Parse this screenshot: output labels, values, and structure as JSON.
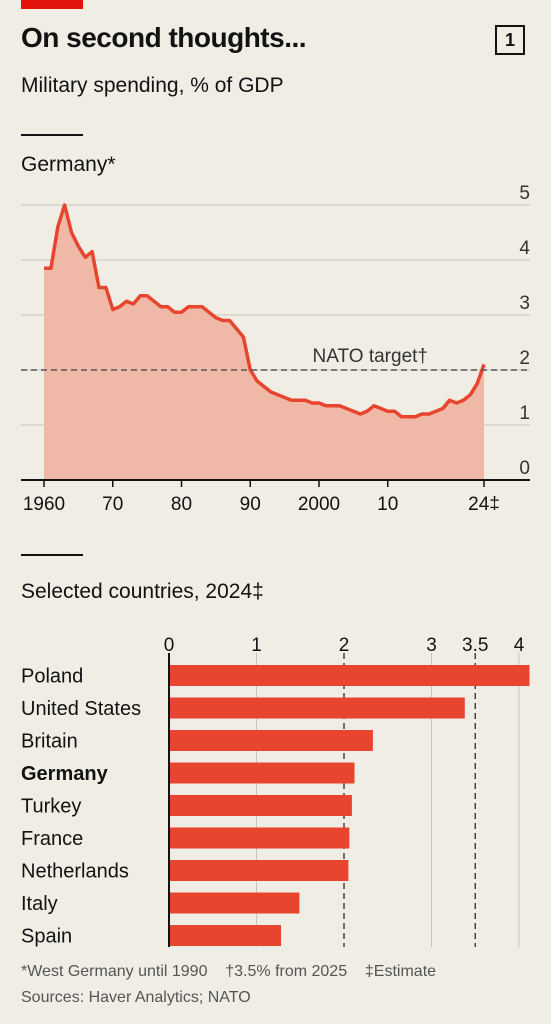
{
  "header": {
    "title": "On second thoughts...",
    "chart_number": "1",
    "subtitle": "Military spending, % of GDP"
  },
  "footnotes": [
    "*West Germany until 1990",
    "†3.5% from 2025",
    "‡Estimate"
  ],
  "source": "Sources: Haver Analytics; NATO",
  "colors": {
    "accent": "#e3120b",
    "line": "#e8452f",
    "area": "#f0b8a6",
    "bar": "#e8452f",
    "background": "#f0ede5"
  },
  "chart_data": [
    {
      "type": "area",
      "title": "Germany*",
      "x_tick_labels": [
        "1960",
        "70",
        "80",
        "90",
        "2000",
        "10",
        "24‡"
      ],
      "x_tick_values": [
        1960,
        1970,
        1980,
        1990,
        2000,
        2010,
        2024
      ],
      "y_tick_labels": [
        "0",
        "1",
        "2",
        "3",
        "4",
        "5"
      ],
      "ylim": [
        0,
        5
      ],
      "xlim": [
        1960,
        2024
      ],
      "grid": true,
      "reference_line": {
        "label": "NATO target†",
        "value": 2
      },
      "series": [
        {
          "x": [
            1960,
            1961,
            1962,
            1963,
            1964,
            1965,
            1966,
            1967,
            1968,
            1969,
            1970,
            1971,
            1972,
            1973,
            1974,
            1975,
            1976,
            1977,
            1978,
            1979,
            1980,
            1981,
            1982,
            1983,
            1984,
            1985,
            1986,
            1987,
            1988,
            1989,
            1990,
            1991,
            1992,
            1993,
            1994,
            1995,
            1996,
            1997,
            1998,
            1999,
            2000,
            2001,
            2002,
            2003,
            2004,
            2005,
            2006,
            2007,
            2008,
            2009,
            2010,
            2011,
            2012,
            2013,
            2014,
            2015,
            2016,
            2017,
            2018,
            2019,
            2020,
            2021,
            2022,
            2023,
            2024
          ],
          "values": [
            3.85,
            3.85,
            4.6,
            5.0,
            4.5,
            4.25,
            4.05,
            4.15,
            3.5,
            3.5,
            3.1,
            3.15,
            3.25,
            3.2,
            3.35,
            3.35,
            3.25,
            3.15,
            3.15,
            3.05,
            3.05,
            3.15,
            3.15,
            3.15,
            3.05,
            2.95,
            2.9,
            2.9,
            2.75,
            2.6,
            2.0,
            1.8,
            1.7,
            1.6,
            1.55,
            1.5,
            1.45,
            1.45,
            1.45,
            1.4,
            1.4,
            1.35,
            1.35,
            1.35,
            1.3,
            1.25,
            1.2,
            1.25,
            1.35,
            1.3,
            1.25,
            1.25,
            1.15,
            1.15,
            1.15,
            1.2,
            1.2,
            1.25,
            1.3,
            1.45,
            1.4,
            1.45,
            1.55,
            1.75,
            2.1
          ]
        }
      ]
    },
    {
      "type": "bar",
      "orientation": "horizontal",
      "title": "Selected countries, 2024‡",
      "categories": [
        "Poland",
        "United States",
        "Britain",
        "Germany",
        "Turkey",
        "France",
        "Netherlands",
        "Italy",
        "Spain"
      ],
      "highlight": "Germany",
      "values": [
        4.12,
        3.38,
        2.33,
        2.12,
        2.09,
        2.06,
        2.05,
        1.49,
        1.28
      ],
      "x_tick_labels": [
        "0",
        "1",
        "2",
        "3",
        "3.5",
        "4"
      ],
      "x_tick_values": [
        0,
        1,
        2,
        3,
        3.5,
        4
      ],
      "dashed_lines": [
        2,
        3.5
      ],
      "xlim": [
        0,
        4
      ]
    }
  ]
}
